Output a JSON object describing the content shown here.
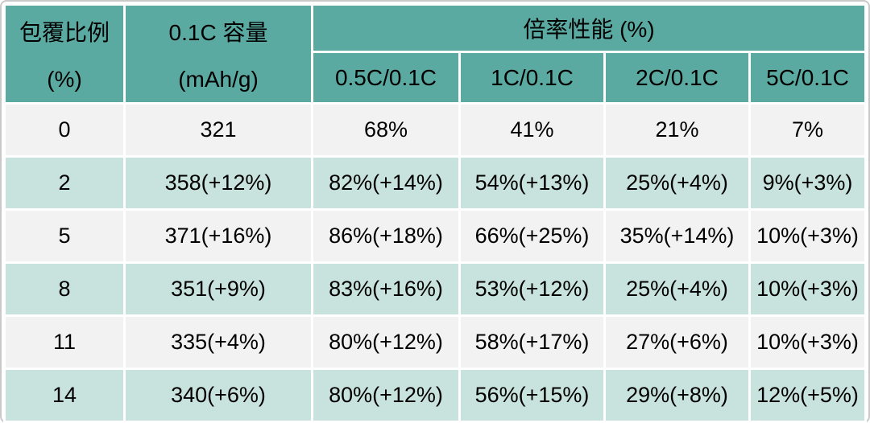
{
  "header": {
    "col1": {
      "line1": "包覆比例",
      "line2": "(%)"
    },
    "col2": {
      "line1": "0.1C 容量",
      "line2": "(mAh/g)"
    },
    "group": "倍率性能 (%)",
    "sub": [
      "0.5C/0.1C",
      "1C/0.1C",
      "2C/0.1C",
      "5C/0.1C"
    ]
  },
  "colors": {
    "header_bg": "#5aaaa2",
    "row_teal": "#c8e2dd",
    "row_gray": "#f2f2f2",
    "grid_line": "#ffffff",
    "frame_border": "#c9c9c9",
    "text": "#000000"
  },
  "chart_data": {
    "type": "table",
    "title": "",
    "columns": [
      "包覆比例 (%)",
      "0.1C 容量 (mAh/g)",
      "0.5C/0.1C",
      "1C/0.1C",
      "2C/0.1C",
      "5C/0.1C"
    ],
    "column_group": {
      "label": "倍率性能 (%)",
      "columns": [
        "0.5C/0.1C",
        "1C/0.1C",
        "2C/0.1C",
        "5C/0.1C"
      ]
    },
    "rows": [
      [
        "0",
        "321",
        "68%",
        "41%",
        "21%",
        "7%"
      ],
      [
        "2",
        "358(+12%)",
        "82%(+14%)",
        "54%(+13%)",
        "25%(+4%)",
        "9%(+3%)"
      ],
      [
        "5",
        "371(+16%)",
        "86%(+18%)",
        "66%(+25%)",
        "35%(+14%)",
        "10%(+3%)"
      ],
      [
        "8",
        "351(+9%)",
        "83%(+16%)",
        "53%(+12%)",
        "25%(+4%)",
        "10%(+3%)"
      ],
      [
        "11",
        "335(+4%)",
        "80%(+12%)",
        "58%(+17%)",
        "27%(+6%)",
        "10%(+3%)"
      ],
      [
        "14",
        "340(+6%)",
        "80%(+12%)",
        "56%(+15%)",
        "29%(+8%)",
        "12%(+5%)"
      ]
    ]
  }
}
